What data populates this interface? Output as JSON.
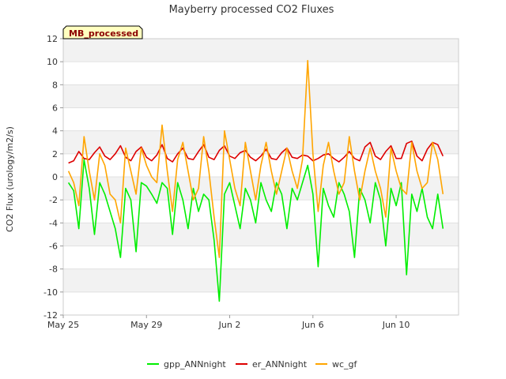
{
  "chart_data": {
    "type": "line",
    "title": "Mayberry processed CO2 Fluxes",
    "badge": "MB_processed",
    "xlabel": "",
    "ylabel": "CO2 Flux (urology/m2/s)",
    "ylim": [
      -12,
      12
    ],
    "yticks": [
      -12,
      -10,
      -8,
      -6,
      -4,
      -2,
      0,
      2,
      4,
      6,
      8,
      10,
      12
    ],
    "xlim": [
      "2016-05-25",
      "2016-06-13"
    ],
    "xticks": [
      {
        "date": "2016-05-25",
        "label": "May 25"
      },
      {
        "date": "2016-05-29",
        "label": "May 29"
      },
      {
        "date": "2016-06-02",
        "label": "Jun 2"
      },
      {
        "date": "2016-06-06",
        "label": "Jun 6"
      },
      {
        "date": "2016-06-10",
        "label": "Jun 10"
      }
    ],
    "grid": true,
    "legend_position": "bottom",
    "series": [
      {
        "name": "gpp_ANNnight",
        "color": "#00ee00",
        "x": [
          "2016-05-25T06:00",
          "2016-05-25T12:00",
          "2016-05-25T18:00",
          "2016-05-26T00:00",
          "2016-05-26T06:00",
          "2016-05-26T12:00",
          "2016-05-26T18:00",
          "2016-05-27T00:00",
          "2016-05-27T06:00",
          "2016-05-27T12:00",
          "2016-05-27T18:00",
          "2016-05-28T00:00",
          "2016-05-28T06:00",
          "2016-05-28T12:00",
          "2016-05-28T18:00",
          "2016-05-29T00:00",
          "2016-05-29T06:00",
          "2016-05-29T12:00",
          "2016-05-29T18:00",
          "2016-05-30T00:00",
          "2016-05-30T06:00",
          "2016-05-30T12:00",
          "2016-05-30T18:00",
          "2016-05-31T00:00",
          "2016-05-31T06:00",
          "2016-05-31T12:00",
          "2016-05-31T18:00",
          "2016-06-01T00:00",
          "2016-06-01T06:00",
          "2016-06-01T12:00",
          "2016-06-01T18:00",
          "2016-06-02T00:00",
          "2016-06-02T06:00",
          "2016-06-02T12:00",
          "2016-06-02T18:00",
          "2016-06-03T00:00",
          "2016-06-03T06:00",
          "2016-06-03T12:00",
          "2016-06-03T18:00",
          "2016-06-04T00:00",
          "2016-06-04T06:00",
          "2016-06-04T12:00",
          "2016-06-04T18:00",
          "2016-06-05T00:00",
          "2016-06-05T06:00",
          "2016-06-05T12:00",
          "2016-06-05T18:00",
          "2016-06-06T00:00",
          "2016-06-06T06:00",
          "2016-06-06T12:00",
          "2016-06-06T18:00",
          "2016-06-07T00:00",
          "2016-06-07T06:00",
          "2016-06-07T12:00",
          "2016-06-07T18:00",
          "2016-06-08T00:00",
          "2016-06-08T06:00",
          "2016-06-08T12:00",
          "2016-06-08T18:00",
          "2016-06-09T00:00",
          "2016-06-09T06:00",
          "2016-06-09T12:00",
          "2016-06-09T18:00",
          "2016-06-10T00:00",
          "2016-06-10T06:00",
          "2016-06-10T12:00",
          "2016-06-10T18:00",
          "2016-06-11T00:00",
          "2016-06-11T06:00",
          "2016-06-11T12:00",
          "2016-06-11T18:00",
          "2016-06-12T00:00",
          "2016-06-12T06:00"
        ],
        "values": [
          -0.5,
          -1.2,
          -4.5,
          1.5,
          -1.0,
          -5.0,
          -0.5,
          -1.5,
          -3.0,
          -4.5,
          -7.0,
          -1.0,
          -2.0,
          -6.5,
          -0.5,
          -0.8,
          -1.5,
          -2.3,
          -0.5,
          -1.0,
          -5.0,
          -0.5,
          -2.0,
          -4.5,
          -1.0,
          -3.0,
          -1.5,
          -2.0,
          -5.5,
          -10.8,
          -1.5,
          -0.5,
          -2.5,
          -4.5,
          -1.0,
          -2.0,
          -4.0,
          -0.5,
          -2.0,
          -3.0,
          -0.5,
          -1.5,
          -4.5,
          -1.0,
          -2.0,
          -0.5,
          1.0,
          -1.5,
          -7.8,
          -1.0,
          -2.5,
          -3.5,
          -0.5,
          -1.5,
          -3.0,
          -7.0,
          -1.0,
          -2.0,
          -4.0,
          -0.5,
          -2.0,
          -6.0,
          -1.0,
          -2.5,
          -0.5,
          -8.5,
          -1.5,
          -3.0,
          -1.0,
          -3.5,
          -4.5,
          -1.5,
          -4.5
        ]
      },
      {
        "name": "er_ANNnight",
        "color": "#dd0000",
        "x": [
          "2016-05-25T06:00",
          "2016-05-25T12:00",
          "2016-05-25T18:00",
          "2016-05-26T00:00",
          "2016-05-26T06:00",
          "2016-05-26T12:00",
          "2016-05-26T18:00",
          "2016-05-27T00:00",
          "2016-05-27T06:00",
          "2016-05-27T12:00",
          "2016-05-27T18:00",
          "2016-05-28T00:00",
          "2016-05-28T06:00",
          "2016-05-28T12:00",
          "2016-05-28T18:00",
          "2016-05-29T00:00",
          "2016-05-29T06:00",
          "2016-05-29T12:00",
          "2016-05-29T18:00",
          "2016-05-30T00:00",
          "2016-05-30T06:00",
          "2016-05-30T12:00",
          "2016-05-30T18:00",
          "2016-05-31T00:00",
          "2016-05-31T06:00",
          "2016-05-31T12:00",
          "2016-05-31T18:00",
          "2016-06-01T00:00",
          "2016-06-01T06:00",
          "2016-06-01T12:00",
          "2016-06-01T18:00",
          "2016-06-02T00:00",
          "2016-06-02T06:00",
          "2016-06-02T12:00",
          "2016-06-02T18:00",
          "2016-06-03T00:00",
          "2016-06-03T06:00",
          "2016-06-03T12:00",
          "2016-06-03T18:00",
          "2016-06-04T00:00",
          "2016-06-04T06:00",
          "2016-06-04T12:00",
          "2016-06-04T18:00",
          "2016-06-05T00:00",
          "2016-06-05T06:00",
          "2016-06-05T12:00",
          "2016-06-05T18:00",
          "2016-06-06T00:00",
          "2016-06-06T06:00",
          "2016-06-06T12:00",
          "2016-06-06T18:00",
          "2016-06-07T00:00",
          "2016-06-07T06:00",
          "2016-06-07T12:00",
          "2016-06-07T18:00",
          "2016-06-08T00:00",
          "2016-06-08T06:00",
          "2016-06-08T12:00",
          "2016-06-08T18:00",
          "2016-06-09T00:00",
          "2016-06-09T06:00",
          "2016-06-09T12:00",
          "2016-06-09T18:00",
          "2016-06-10T00:00",
          "2016-06-10T06:00",
          "2016-06-10T12:00",
          "2016-06-10T18:00",
          "2016-06-11T00:00",
          "2016-06-11T06:00",
          "2016-06-11T12:00",
          "2016-06-11T18:00",
          "2016-06-12T00:00",
          "2016-06-12T06:00"
        ],
        "values": [
          1.2,
          1.4,
          2.2,
          1.6,
          1.5,
          2.1,
          2.6,
          1.8,
          1.5,
          2.0,
          2.7,
          1.7,
          1.4,
          2.2,
          2.6,
          1.7,
          1.4,
          1.9,
          2.8,
          1.6,
          1.3,
          2.0,
          2.5,
          1.6,
          1.5,
          2.2,
          2.8,
          1.7,
          1.5,
          2.3,
          2.7,
          1.8,
          1.6,
          2.1,
          2.3,
          1.7,
          1.4,
          1.8,
          2.4,
          1.6,
          1.5,
          2.1,
          2.5,
          1.7,
          1.6,
          1.9,
          1.8,
          1.4,
          1.6,
          1.9,
          2.0,
          1.6,
          1.3,
          1.7,
          2.2,
          1.6,
          1.4,
          2.6,
          3.0,
          1.8,
          1.5,
          2.2,
          2.7,
          1.6,
          1.6,
          2.9,
          3.1,
          1.8,
          1.4,
          2.4,
          3.0,
          2.8,
          1.8
        ]
      },
      {
        "name": "wc_gf",
        "color": "#ffa500",
        "x": [
          "2016-05-25T06:00",
          "2016-05-25T12:00",
          "2016-05-25T18:00",
          "2016-05-26T00:00",
          "2016-05-26T06:00",
          "2016-05-26T12:00",
          "2016-05-26T18:00",
          "2016-05-27T00:00",
          "2016-05-27T06:00",
          "2016-05-27T12:00",
          "2016-05-27T18:00",
          "2016-05-28T00:00",
          "2016-05-28T06:00",
          "2016-05-28T12:00",
          "2016-05-28T18:00",
          "2016-05-29T00:00",
          "2016-05-29T06:00",
          "2016-05-29T12:00",
          "2016-05-29T18:00",
          "2016-05-30T00:00",
          "2016-05-30T06:00",
          "2016-05-30T12:00",
          "2016-05-30T18:00",
          "2016-05-31T00:00",
          "2016-05-31T06:00",
          "2016-05-31T12:00",
          "2016-05-31T18:00",
          "2016-06-01T00:00",
          "2016-06-01T06:00",
          "2016-06-01T12:00",
          "2016-06-01T18:00",
          "2016-06-02T00:00",
          "2016-06-02T06:00",
          "2016-06-02T12:00",
          "2016-06-02T18:00",
          "2016-06-03T00:00",
          "2016-06-03T06:00",
          "2016-06-03T12:00",
          "2016-06-03T18:00",
          "2016-06-04T00:00",
          "2016-06-04T06:00",
          "2016-06-04T12:00",
          "2016-06-04T18:00",
          "2016-06-05T00:00",
          "2016-06-05T06:00",
          "2016-06-05T12:00",
          "2016-06-05T18:00",
          "2016-06-06T00:00",
          "2016-06-06T06:00",
          "2016-06-06T12:00",
          "2016-06-06T18:00",
          "2016-06-07T00:00",
          "2016-06-07T06:00",
          "2016-06-07T12:00",
          "2016-06-07T18:00",
          "2016-06-08T00:00",
          "2016-06-08T06:00",
          "2016-06-08T12:00",
          "2016-06-08T18:00",
          "2016-06-09T00:00",
          "2016-06-09T06:00",
          "2016-06-09T12:00",
          "2016-06-09T18:00",
          "2016-06-10T00:00",
          "2016-06-10T06:00",
          "2016-06-10T12:00",
          "2016-06-10T18:00",
          "2016-06-11T00:00",
          "2016-06-11T06:00",
          "2016-06-11T12:00",
          "2016-06-11T18:00",
          "2016-06-12T00:00",
          "2016-06-12T06:00"
        ],
        "values": [
          0.5,
          -0.5,
          -2.5,
          3.5,
          0.5,
          -2.0,
          2.0,
          1.0,
          -1.5,
          -2.0,
          -4.0,
          2.5,
          0.5,
          -1.5,
          2.5,
          1.0,
          0.0,
          -0.5,
          4.5,
          0.5,
          -3.0,
          1.5,
          3.0,
          0.5,
          -2.0,
          -1.0,
          3.5,
          0.5,
          -3.5,
          -7.0,
          4.0,
          1.5,
          -1.0,
          -2.5,
          3.0,
          0.5,
          -2.0,
          1.0,
          3.0,
          0.5,
          -1.5,
          0.5,
          2.5,
          0.5,
          -1.0,
          1.5,
          10.1,
          2.0,
          -3.0,
          1.0,
          3.0,
          0.5,
          -1.5,
          -0.5,
          3.5,
          0.5,
          -2.0,
          0.5,
          2.5,
          0.5,
          -1.0,
          -3.5,
          2.5,
          0.5,
          -1.0,
          -1.5,
          3.0,
          0.5,
          -1.0,
          -0.5,
          3.0,
          1.5,
          -1.5
        ]
      }
    ]
  }
}
